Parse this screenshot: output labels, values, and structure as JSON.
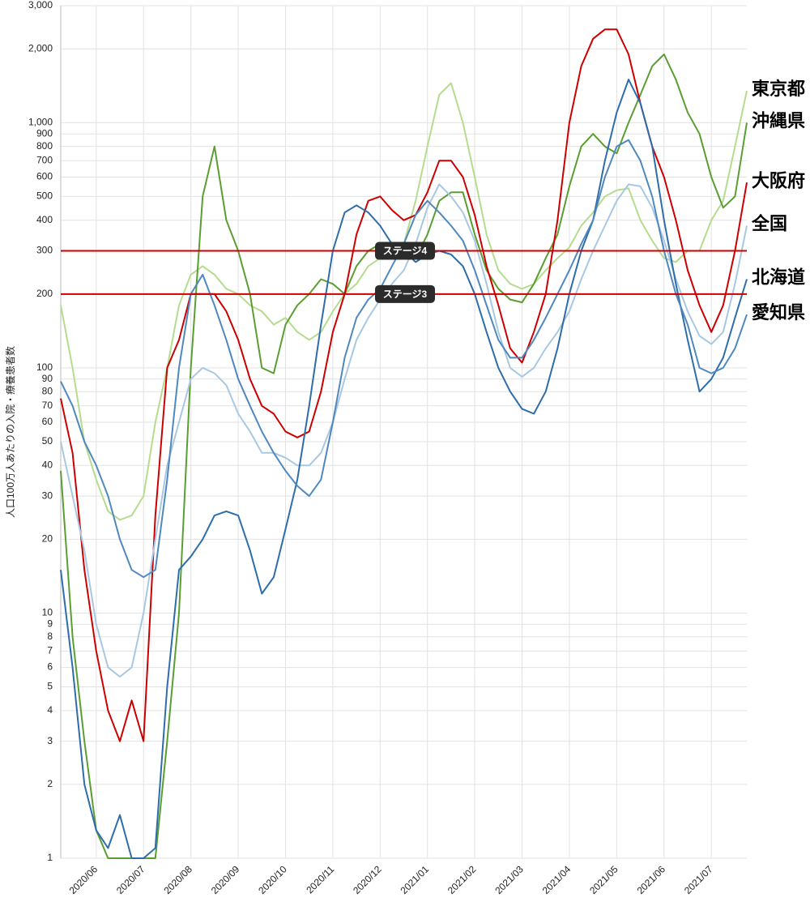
{
  "chart_data": {
    "type": "line",
    "y_label": "人口100万人あたりの入院・療養患者数",
    "log_scale": true,
    "grid": true,
    "categories": [
      null,
      null,
      null,
      "2020/06",
      null,
      null,
      null,
      "2020/07",
      null,
      null,
      null,
      "2020/08",
      null,
      null,
      null,
      "2020/09",
      null,
      null,
      null,
      "2020/10",
      null,
      null,
      null,
      "2020/11",
      null,
      null,
      null,
      "2020/12",
      null,
      null,
      null,
      "2021/01",
      null,
      null,
      null,
      "2021/02",
      null,
      null,
      null,
      "2021/03",
      null,
      null,
      null,
      "2021/04",
      null,
      null,
      null,
      "2021/05",
      null,
      null,
      null,
      "2021/06",
      null,
      null,
      null,
      "2021/07",
      null,
      null,
      null
    ],
    "ylim": [
      1,
      3000
    ],
    "yticks": [
      1,
      2,
      3,
      4,
      5,
      6,
      7,
      8,
      9,
      10,
      20,
      30,
      40,
      50,
      60,
      70,
      80,
      90,
      100,
      200,
      300,
      400,
      500,
      600,
      700,
      800,
      900,
      {
        "value": 1000,
        "label": "1,000"
      },
      {
        "value": 2000,
        "label": "2,000"
      },
      {
        "value": 3000,
        "label": "3,000"
      }
    ],
    "reference_lines": [
      {
        "value": 300,
        "label": "ステージ4"
      },
      {
        "value": 200,
        "label": "ステージ3"
      }
    ],
    "reference_color": "#cc0000",
    "series": [
      {
        "name": "東京都",
        "color": "#b5dc8e",
        "values": [
          180,
          100,
          50,
          35,
          26,
          24,
          25,
          30,
          60,
          100,
          180,
          240,
          260,
          240,
          210,
          200,
          180,
          170,
          150,
          160,
          140,
          130,
          140,
          170,
          200,
          220,
          260,
          280,
          300,
          320,
          480,
          800,
          1300,
          1450,
          1000,
          600,
          350,
          250,
          220,
          210,
          220,
          250,
          280,
          310,
          380,
          430,
          500,
          530,
          540,
          400,
          330,
          280,
          270,
          300,
          300,
          400,
          480,
          800,
          1350
        ]
      },
      {
        "name": "沖縄県",
        "color": "#5a9e32",
        "values": [
          38,
          8,
          3,
          1.3,
          1,
          1,
          1,
          1,
          1,
          3,
          10,
          100,
          500,
          800,
          400,
          300,
          200,
          100,
          95,
          150,
          180,
          200,
          230,
          220,
          200,
          260,
          300,
          320,
          290,
          280,
          280,
          350,
          480,
          520,
          520,
          350,
          250,
          210,
          190,
          185,
          220,
          280,
          350,
          550,
          800,
          900,
          800,
          750,
          1000,
          1300,
          1700,
          1900,
          1500,
          1100,
          900,
          600,
          450,
          500,
          1000
        ]
      },
      {
        "name": "大阪府",
        "color": "#cc0000",
        "values": [
          75,
          45,
          15,
          7,
          4,
          3,
          4.4,
          3,
          25,
          100,
          130,
          200,
          200,
          200,
          170,
          130,
          90,
          70,
          65,
          55,
          52,
          55,
          80,
          140,
          200,
          350,
          480,
          500,
          440,
          400,
          420,
          520,
          700,
          700,
          600,
          420,
          260,
          180,
          120,
          105,
          140,
          200,
          400,
          1000,
          1700,
          2200,
          2400,
          2400,
          1900,
          1200,
          800,
          600,
          400,
          250,
          180,
          140,
          180,
          300,
          570
        ]
      },
      {
        "name": "全国",
        "color": "#a8c8e2",
        "values": [
          50,
          30,
          18,
          9,
          6,
          5.5,
          6,
          10,
          20,
          40,
          60,
          90,
          100,
          95,
          85,
          65,
          55,
          45,
          45,
          43,
          40,
          40,
          45,
          60,
          90,
          130,
          160,
          190,
          220,
          250,
          320,
          450,
          560,
          500,
          430,
          330,
          220,
          140,
          100,
          92,
          100,
          120,
          140,
          170,
          230,
          300,
          380,
          480,
          560,
          550,
          450,
          330,
          230,
          170,
          135,
          125,
          140,
          220,
          380
        ]
      },
      {
        "name": "北海道",
        "color": "#2e6dab",
        "values": [
          15,
          6,
          2,
          1.3,
          1.1,
          1.5,
          1,
          1,
          1.1,
          5,
          15,
          17,
          20,
          25,
          26,
          25,
          18,
          12,
          14,
          22,
          35,
          70,
          150,
          300,
          430,
          460,
          430,
          380,
          320,
          300,
          270,
          290,
          300,
          290,
          260,
          200,
          140,
          100,
          80,
          68,
          65,
          80,
          120,
          200,
          300,
          400,
          700,
          1100,
          1500,
          1200,
          800,
          400,
          220,
          130,
          80,
          90,
          110,
          160,
          230
        ]
      },
      {
        "name": "愛知県",
        "color": "#4f88bf",
        "values": [
          88,
          70,
          50,
          40,
          30,
          20,
          15,
          14,
          15,
          35,
          100,
          200,
          240,
          180,
          130,
          90,
          70,
          55,
          45,
          38,
          33,
          30,
          35,
          60,
          110,
          160,
          190,
          210,
          260,
          320,
          420,
          480,
          430,
          380,
          330,
          250,
          180,
          130,
          110,
          110,
          130,
          160,
          200,
          250,
          320,
          400,
          600,
          800,
          850,
          700,
          500,
          300,
          200,
          150,
          100,
          95,
          100,
          120,
          165
        ]
      }
    ]
  }
}
